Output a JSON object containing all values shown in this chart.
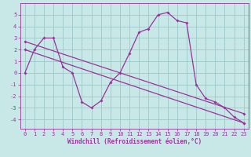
{
  "bg_color": "#c8e8e8",
  "line_color": "#993399",
  "grid_color": "#a0c8c8",
  "xlabel": "Windchill (Refroidissement éolien,°C)",
  "xlim": [
    -0.5,
    23.5
  ],
  "ylim": [
    -4.8,
    6.0
  ],
  "yticks": [
    -4,
    -3,
    -2,
    -1,
    0,
    1,
    2,
    3,
    4,
    5
  ],
  "xticks": [
    0,
    1,
    2,
    3,
    4,
    5,
    6,
    7,
    8,
    9,
    10,
    11,
    12,
    13,
    14,
    15,
    16,
    17,
    18,
    19,
    20,
    21,
    22,
    23
  ],
  "series1_x": [
    0,
    1,
    2,
    3,
    4,
    5,
    6,
    7,
    8,
    9,
    10,
    11,
    12,
    13,
    14,
    15,
    16,
    17,
    18,
    19,
    20,
    21,
    22,
    23
  ],
  "series1_y": [
    0,
    2,
    3,
    3,
    0.5,
    0,
    -2.5,
    -3,
    -2.4,
    -0.8,
    0,
    1.7,
    3.5,
    3.8,
    5.0,
    5.2,
    4.5,
    4.3,
    -1.0,
    -2.2,
    -2.5,
    -3.0,
    -3.8,
    -4.3
  ],
  "series2_x": [
    0,
    23
  ],
  "series2_y": [
    2.7,
    -3.5
  ],
  "series3_x": [
    0,
    23
  ],
  "series3_y": [
    2.0,
    -4.3
  ],
  "marker": "D",
  "markersize": 2,
  "linewidth": 0.9,
  "tick_fontsize": 5,
  "xlabel_fontsize": 5.5
}
